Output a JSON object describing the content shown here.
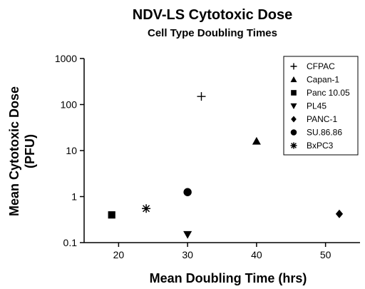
{
  "chart_data": {
    "type": "scatter",
    "title": "NDV-LS Cytotoxic Dose",
    "subtitle": "Cell Type Doubling Times",
    "xlabel": "Mean Doubling Time (hrs)",
    "ylabel_line1": "Mean Cytotoxic Dose",
    "ylabel_line2": "(PFU)",
    "xlim": [
      15,
      55
    ],
    "ylim": [
      0.1,
      1000
    ],
    "yscale": "log",
    "x_ticks": [
      20,
      30,
      40,
      50
    ],
    "y_ticks": [
      0.1,
      1,
      10,
      100,
      1000
    ],
    "x_tick_labels": [
      "20",
      "30",
      "40",
      "50"
    ],
    "y_tick_labels": [
      "0.1",
      "1",
      "10",
      "100",
      "1000"
    ],
    "legend_position": "top-right",
    "color": "#000000",
    "series": [
      {
        "name": "CFPAC",
        "marker": "plus",
        "points": [
          [
            32,
            150
          ]
        ]
      },
      {
        "name": "Capan-1",
        "marker": "triangle-up",
        "points": [
          [
            40,
            16
          ]
        ]
      },
      {
        "name": "Panc 10.05",
        "marker": "square",
        "points": [
          [
            19,
            0.4
          ]
        ]
      },
      {
        "name": "PL45",
        "marker": "triangle-down",
        "points": [
          [
            30,
            0.15
          ]
        ]
      },
      {
        "name": "PANC-1",
        "marker": "diamond",
        "points": [
          [
            52,
            0.42
          ]
        ]
      },
      {
        "name": "SU.86.86",
        "marker": "circle",
        "points": [
          [
            30,
            1.25
          ]
        ]
      },
      {
        "name": "BxPC3",
        "marker": "asterisk",
        "points": [
          [
            24,
            0.55
          ]
        ]
      }
    ]
  }
}
